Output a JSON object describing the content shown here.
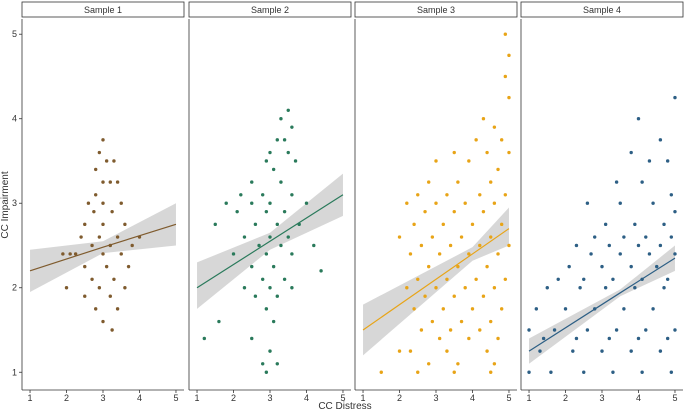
{
  "x_label": "CC Distress",
  "y_label": "CC Impairment",
  "chart_data": [
    {
      "type": "scatter",
      "title": "Sample 1",
      "color": "#7f5b2e",
      "xlim": [
        0.78,
        5.22
      ],
      "ylim": [
        0.79,
        5.18
      ],
      "xticks": [
        1,
        2,
        3,
        4,
        5
      ],
      "yticks": [
        1,
        2,
        3,
        4,
        5
      ],
      "x": [
        3,
        2.9,
        3.1,
        2.8,
        3.3,
        3,
        3.2,
        2.8,
        3.4,
        2.6,
        3,
        3.5,
        2.75,
        3.25,
        2.5,
        3,
        3.6,
        2.4,
        2.9,
        3.4,
        2.1,
        2.7,
        3.2,
        3.8,
        2.25,
        3,
        3.5,
        2.5,
        3.1,
        3.7,
        2,
        2.7,
        3.3,
        2.9,
        3.6,
        2.5,
        3.2,
        2.8,
        3.4,
        3,
        3.25,
        4,
        1.9
      ],
      "y": [
        3.75,
        3.6,
        3.5,
        3.4,
        3.5,
        3.25,
        3.25,
        3.1,
        3.25,
        3,
        3,
        3,
        2.9,
        2.9,
        2.75,
        2.75,
        2.75,
        2.6,
        2.6,
        2.6,
        2.4,
        2.5,
        2.5,
        2.5,
        2.4,
        2.4,
        2.4,
        2.25,
        2.25,
        2.25,
        2,
        2.1,
        2.1,
        2,
        2,
        1.9,
        1.9,
        1.75,
        1.75,
        1.6,
        1.5,
        2.6,
        2.4
      ],
      "fit": {
        "x": [
          1,
          3,
          5
        ],
        "y": [
          2.2,
          2.48,
          2.75
        ],
        "lower": [
          1.95,
          2.41,
          2.5
        ],
        "upper": [
          2.45,
          2.55,
          3.0
        ]
      }
    },
    {
      "type": "scatter",
      "title": "Sample 2",
      "color": "#2a7a5b",
      "xlim": [
        0.78,
        5.22
      ],
      "ylim": [
        0.79,
        5.18
      ],
      "xticks": [
        1,
        2,
        3,
        4,
        5
      ],
      "x": [
        3.5,
        3.3,
        3.6,
        3.2,
        3.4,
        3,
        3.5,
        2.9,
        3.7,
        3.1,
        2.5,
        3.3,
        2.2,
        2.8,
        3.6,
        1.8,
        2.5,
        3,
        4,
        2.1,
        2.9,
        3.4,
        1.5,
        2.6,
        3.2,
        3.8,
        2.3,
        3,
        3.5,
        2.7,
        3.3,
        4.2,
        2,
        2.9,
        3.6,
        2.5,
        3.1,
        2.8,
        3.4,
        2.3,
        3,
        3.6,
        2.6,
        3.2,
        2.9,
        1.6,
        3.1,
        1.2,
        2.5,
        3,
        2.8,
        3.2,
        2.9,
        4.4
      ],
      "y": [
        4.1,
        4,
        3.9,
        3.75,
        3.75,
        3.6,
        3.6,
        3.5,
        3.5,
        3.4,
        3.25,
        3.25,
        3.1,
        3.1,
        3.1,
        3,
        3,
        3,
        3,
        2.9,
        2.9,
        2.9,
        2.75,
        2.75,
        2.75,
        2.75,
        2.6,
        2.6,
        2.6,
        2.5,
        2.5,
        2.5,
        2.4,
        2.4,
        2.4,
        2.25,
        2.25,
        2.1,
        2.1,
        2,
        2,
        2,
        1.9,
        1.9,
        1.75,
        1.6,
        1.6,
        1.4,
        1.4,
        1.25,
        1.1,
        1.1,
        1,
        2.2
      ],
      "fit": {
        "x": [
          1,
          3,
          5
        ],
        "y": [
          2.0,
          2.55,
          3.1
        ],
        "lower": [
          1.75,
          2.45,
          2.85
        ],
        "upper": [
          2.3,
          2.65,
          3.35
        ]
      }
    },
    {
      "type": "scatter",
      "title": "Sample 3",
      "color": "#e8a417",
      "xlim": [
        0.78,
        5.22
      ],
      "ylim": [
        0.79,
        5.18
      ],
      "xticks": [
        1,
        2,
        3,
        4,
        5
      ],
      "x": [
        4.9,
        5,
        4.9,
        5,
        4.3,
        4.6,
        4.1,
        4.8,
        3.5,
        4.4,
        5,
        3,
        3.9,
        4.7,
        2.8,
        3.6,
        4.5,
        2.5,
        3.3,
        4.2,
        4.9,
        2.2,
        3,
        3.8,
        4.6,
        2.7,
        3.5,
        4.3,
        2.4,
        3.2,
        4,
        4.8,
        2,
        2.9,
        3.7,
        4.5,
        2.6,
        3.4,
        4.2,
        5,
        2.3,
        3.1,
        3.9,
        4.7,
        2.8,
        3.6,
        4.4,
        2.5,
        3.3,
        4.1,
        4.9,
        2.2,
        3,
        3.8,
        4.6,
        2.7,
        3.5,
        4.3,
        2.4,
        3.2,
        4,
        4.8,
        2.9,
        3.7,
        4.5,
        2.6,
        3.4,
        4.2,
        3.1,
        3.9,
        4.7,
        2.3,
        3.3,
        4.4,
        2.8,
        3.6,
        4.6,
        1.5,
        2.5,
        3.5,
        4.5,
        2
      ],
      "y": [
        5,
        4.75,
        4.5,
        4.25,
        4,
        3.9,
        3.75,
        3.75,
        3.6,
        3.6,
        3.6,
        3.5,
        3.5,
        3.4,
        3.25,
        3.25,
        3.25,
        3.1,
        3.1,
        3.1,
        3.1,
        3,
        3,
        3,
        3,
        2.9,
        2.9,
        2.9,
        2.75,
        2.75,
        2.75,
        2.75,
        2.6,
        2.6,
        2.6,
        2.6,
        2.5,
        2.5,
        2.5,
        2.5,
        2.4,
        2.4,
        2.4,
        2.4,
        2.25,
        2.25,
        2.25,
        2.1,
        2.1,
        2.1,
        2.1,
        2,
        2,
        2,
        2,
        1.9,
        1.9,
        1.9,
        1.75,
        1.75,
        1.75,
        1.75,
        1.6,
        1.6,
        1.6,
        1.5,
        1.5,
        1.5,
        1.4,
        1.4,
        1.4,
        1.25,
        1.25,
        1.25,
        1.1,
        1.1,
        1.1,
        1,
        1,
        1,
        1,
        1.25
      ],
      "fit": {
        "x": [
          1,
          4,
          5
        ],
        "y": [
          1.5,
          2.4,
          2.7
        ],
        "lower": [
          1.2,
          2.32,
          2.5
        ],
        "upper": [
          1.8,
          2.48,
          2.95
        ]
      }
    },
    {
      "type": "scatter",
      "title": "Sample 4",
      "color": "#2d5f85",
      "xlim": [
        0.78,
        5.22
      ],
      "ylim": [
        0.79,
        5.18
      ],
      "xticks": [
        1,
        2,
        3,
        4,
        5
      ],
      "x": [
        5,
        4,
        4.6,
        3.8,
        4.3,
        4.8,
        3.4,
        4.1,
        4.9,
        2.6,
        3.5,
        4.4,
        5,
        3.1,
        3.9,
        4.7,
        2.8,
        3.6,
        4.2,
        4.9,
        2.3,
        3.2,
        4,
        4.6,
        2.7,
        3.5,
        4.3,
        5,
        2.1,
        3,
        3.8,
        4.5,
        1.8,
        2.5,
        3.3,
        4.1,
        4.8,
        1.5,
        2.4,
        3.1,
        3.9,
        4.7,
        1.2,
        2,
        2.8,
        3.6,
        4.4,
        1,
        1.7,
        2.6,
        3.4,
        4.2,
        5,
        1.3,
        2.2,
        3,
        3.8,
        4.6,
        1,
        1.6,
        2.5,
        3.3,
        4.1,
        4.9,
        1.4,
        2.3,
        3.2,
        4,
        4.8
      ],
      "y": [
        4.25,
        4,
        3.75,
        3.6,
        3.5,
        3.5,
        3.25,
        3.25,
        3.1,
        3,
        3,
        3,
        2.9,
        2.75,
        2.75,
        2.75,
        2.6,
        2.6,
        2.6,
        2.6,
        2.5,
        2.5,
        2.5,
        2.5,
        2.4,
        2.4,
        2.4,
        2.4,
        2.25,
        2.25,
        2.25,
        2.25,
        2.1,
        2.1,
        2.1,
        2.1,
        2.1,
        2,
        2,
        2,
        2,
        2,
        1.75,
        1.75,
        1.75,
        1.75,
        1.75,
        1.5,
        1.5,
        1.5,
        1.5,
        1.5,
        1.5,
        1.25,
        1.25,
        1.25,
        1.25,
        1.25,
        1,
        1,
        1,
        1,
        1,
        1,
        1.4,
        1.4,
        1.4,
        1.4,
        1.4
      ],
      "fit": {
        "x": [
          1,
          3.5,
          5
        ],
        "y": [
          1.25,
          1.94,
          2.35
        ],
        "lower": [
          1.1,
          1.9,
          2.2
        ],
        "upper": [
          1.4,
          1.98,
          2.5
        ]
      }
    }
  ]
}
